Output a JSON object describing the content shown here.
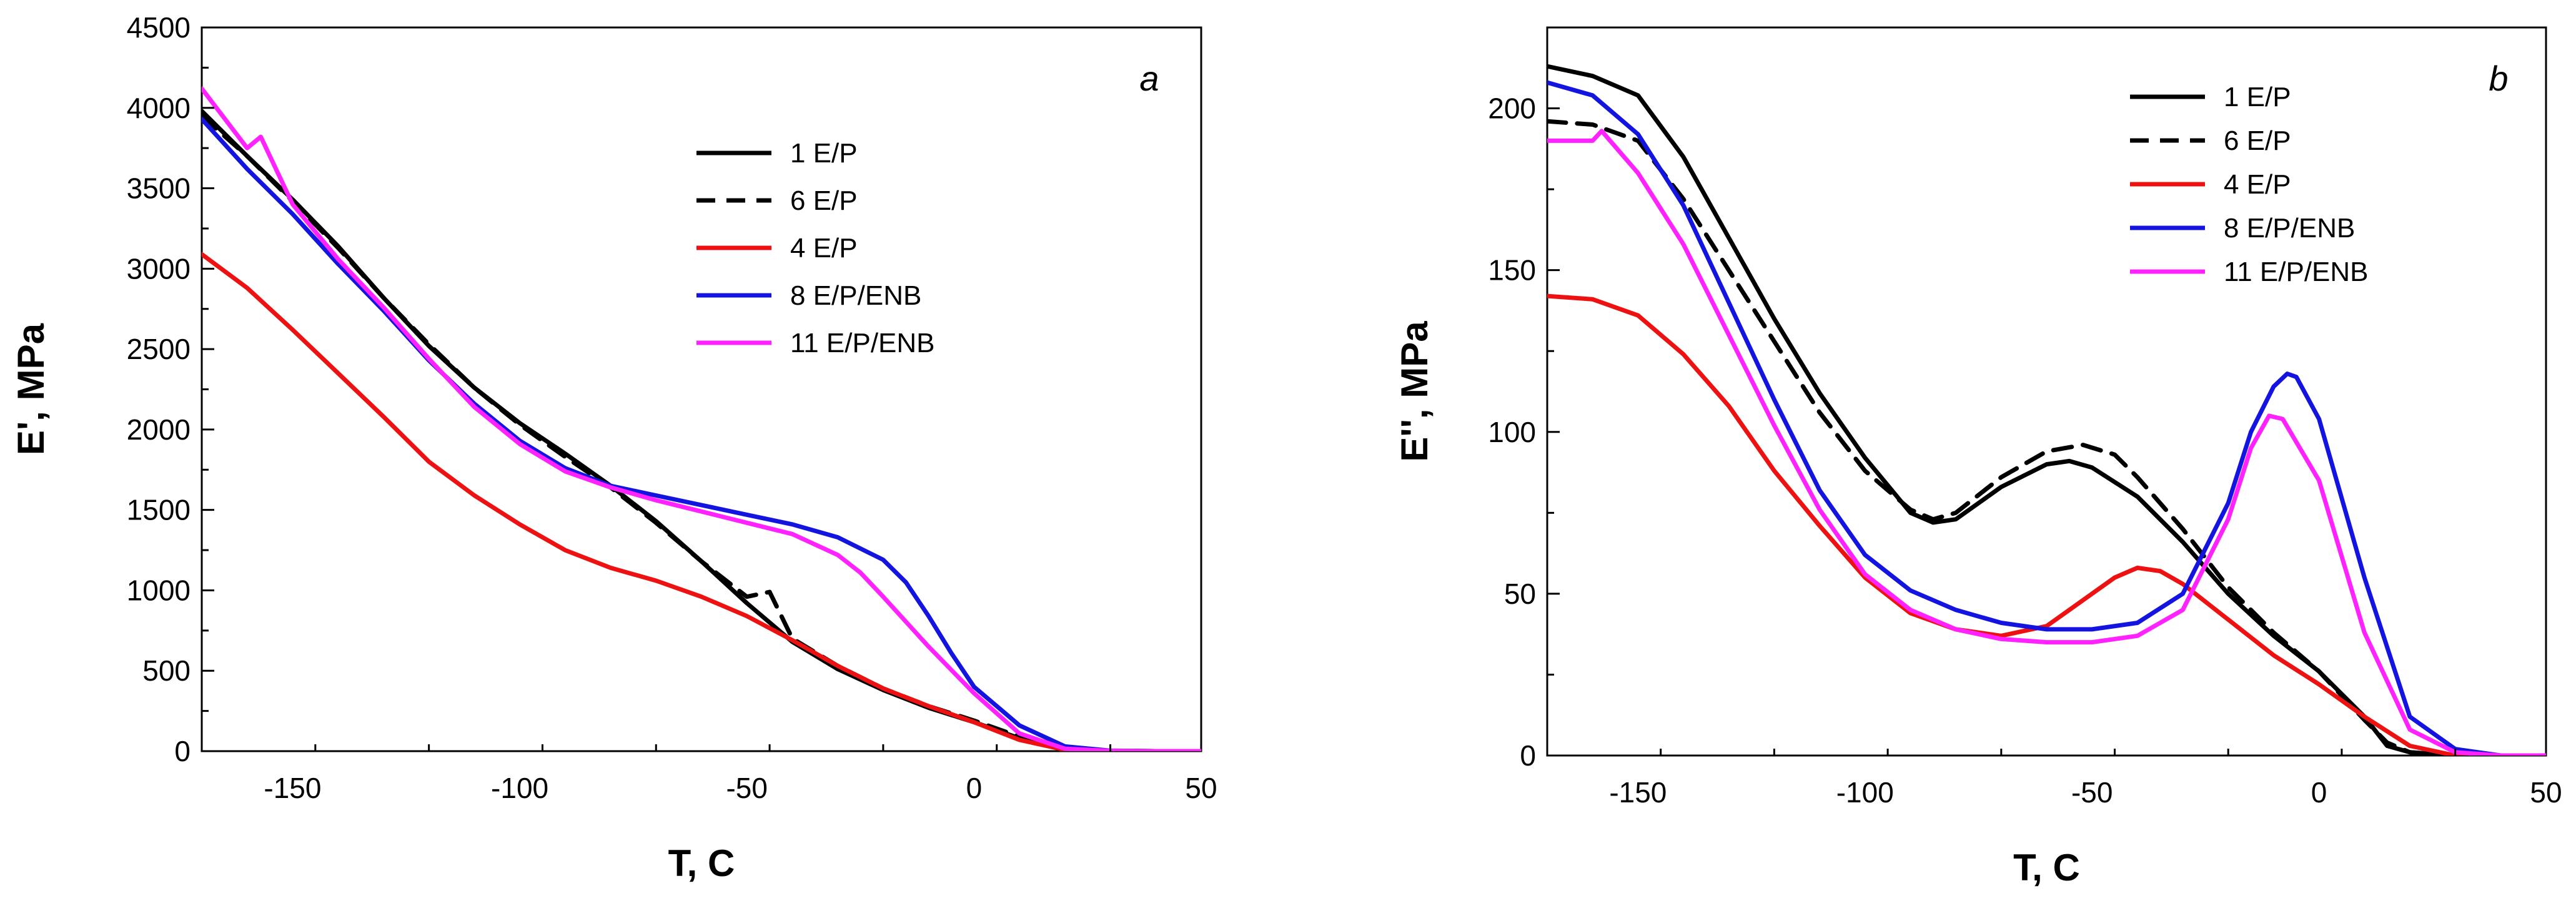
{
  "chart_data": [
    {
      "type": "line",
      "panel_label": "a",
      "xlabel": "T, C",
      "ylabel": "E', MPa",
      "xlim": [
        -170,
        50
      ],
      "ylim": [
        0,
        4500
      ],
      "xticks": [
        -150,
        -100,
        -50,
        0,
        50
      ],
      "yticks": [
        0,
        500,
        1000,
        1500,
        2000,
        2500,
        3000,
        3500,
        4000,
        4500
      ],
      "legend_position": "top-right",
      "series": [
        {
          "name": "1 E/P",
          "color": "#000000",
          "dash": "solid",
          "x": [
            -170,
            -160,
            -150,
            -140,
            -130,
            -120,
            -110,
            -100,
            -90,
            -80,
            -70,
            -60,
            -50,
            -40,
            -30,
            -20,
            -10,
            0,
            10,
            20,
            30,
            40,
            50
          ],
          "y": [
            3980,
            3700,
            3430,
            3140,
            2820,
            2520,
            2260,
            2040,
            1850,
            1650,
            1430,
            1180,
            920,
            680,
            510,
            380,
            270,
            180,
            80,
            10,
            2,
            0,
            0
          ]
        },
        {
          "name": "6 E/P",
          "color": "#000000",
          "dash": "dashed",
          "x": [
            -170,
            -160,
            -150,
            -140,
            -130,
            -120,
            -110,
            -100,
            -90,
            -80,
            -70,
            -60,
            -50,
            -45,
            -40,
            -30,
            -20,
            -10,
            0,
            10,
            20,
            30,
            40,
            50
          ],
          "y": [
            3950,
            3700,
            3420,
            3130,
            2820,
            2530,
            2260,
            2030,
            1830,
            1640,
            1420,
            1180,
            960,
            990,
            700,
            530,
            390,
            280,
            190,
            90,
            15,
            2,
            0,
            0
          ]
        },
        {
          "name": "4 E/P",
          "color": "#ee1111",
          "dash": "solid",
          "x": [
            -170,
            -160,
            -150,
            -140,
            -130,
            -120,
            -110,
            -100,
            -90,
            -80,
            -70,
            -60,
            -50,
            -40,
            -30,
            -20,
            -10,
            0,
            10,
            20,
            30,
            40,
            50
          ],
          "y": [
            3090,
            2880,
            2620,
            2350,
            2080,
            1800,
            1590,
            1410,
            1250,
            1140,
            1060,
            960,
            840,
            690,
            530,
            390,
            280,
            180,
            70,
            8,
            0,
            0,
            0
          ]
        },
        {
          "name": "8 E/P/ENB",
          "color": "#1414e0",
          "dash": "solid",
          "x": [
            -170,
            -160,
            -150,
            -140,
            -130,
            -120,
            -110,
            -100,
            -90,
            -80,
            -70,
            -60,
            -50,
            -40,
            -30,
            -20,
            -15,
            -10,
            -5,
            0,
            10,
            20,
            30,
            40,
            50
          ],
          "y": [
            3930,
            3620,
            3340,
            3030,
            2740,
            2430,
            2160,
            1930,
            1760,
            1650,
            1590,
            1530,
            1470,
            1410,
            1330,
            1190,
            1050,
            840,
            610,
            400,
            160,
            30,
            3,
            0,
            0
          ]
        },
        {
          "name": "11 E/P/ENB",
          "color": "#ff22ff",
          "dash": "solid",
          "x": [
            -170,
            -160,
            -157,
            -150,
            -140,
            -130,
            -120,
            -110,
            -100,
            -90,
            -80,
            -70,
            -60,
            -50,
            -40,
            -30,
            -25,
            -20,
            -10,
            0,
            10,
            20,
            30,
            40,
            50
          ],
          "y": [
            4120,
            3750,
            3820,
            3400,
            3060,
            2760,
            2440,
            2140,
            1910,
            1740,
            1640,
            1560,
            1490,
            1420,
            1350,
            1220,
            1110,
            960,
            650,
            360,
            110,
            15,
            2,
            0,
            0
          ]
        }
      ]
    },
    {
      "type": "line",
      "panel_label": "b",
      "xlabel": "T, C",
      "ylabel": "E'', MPa",
      "xlim": [
        -170,
        50
      ],
      "ylim": [
        0,
        225
      ],
      "xticks": [
        -150,
        -100,
        -50,
        0,
        50
      ],
      "yticks": [
        0,
        50,
        100,
        150,
        200
      ],
      "legend_position": "top-right",
      "series": [
        {
          "name": "1 E/P",
          "color": "#000000",
          "dash": "solid",
          "x": [
            -170,
            -160,
            -150,
            -140,
            -130,
            -120,
            -110,
            -100,
            -90,
            -85,
            -80,
            -70,
            -60,
            -55,
            -50,
            -40,
            -30,
            -20,
            -10,
            0,
            10,
            15,
            20,
            30,
            40,
            50
          ],
          "y": [
            213,
            210,
            204,
            185,
            160,
            135,
            112,
            92,
            75,
            72,
            73,
            83,
            90,
            91,
            89,
            80,
            66,
            50,
            37,
            26,
            12,
            3,
            1,
            0,
            0,
            0
          ]
        },
        {
          "name": "6 E/P",
          "color": "#000000",
          "dash": "dashed",
          "x": [
            -170,
            -160,
            -150,
            -140,
            -130,
            -120,
            -110,
            -100,
            -90,
            -85,
            -80,
            -70,
            -60,
            -52,
            -45,
            -40,
            -30,
            -20,
            -10,
            0,
            10,
            15,
            20,
            30,
            40,
            50
          ],
          "y": [
            196,
            195,
            190,
            172,
            150,
            128,
            106,
            88,
            76,
            73,
            75,
            86,
            94,
            96,
            93,
            86,
            70,
            52,
            38,
            26,
            11,
            4,
            1,
            0,
            0,
            0
          ]
        },
        {
          "name": "4 E/P",
          "color": "#ee1111",
          "dash": "solid",
          "x": [
            -170,
            -160,
            -150,
            -140,
            -130,
            -120,
            -110,
            -100,
            -90,
            -80,
            -70,
            -60,
            -50,
            -45,
            -40,
            -35,
            -30,
            -20,
            -10,
            0,
            10,
            20,
            30,
            40,
            50
          ],
          "y": [
            142,
            141,
            136,
            124,
            108,
            88,
            71,
            55,
            44,
            39,
            37,
            40,
            50,
            55,
            58,
            57,
            53,
            42,
            31,
            22,
            12,
            3,
            0,
            0,
            0
          ]
        },
        {
          "name": "8 E/P/ENB",
          "color": "#1414e0",
          "dash": "solid",
          "x": [
            -170,
            -160,
            -150,
            -140,
            -130,
            -120,
            -110,
            -100,
            -90,
            -80,
            -70,
            -60,
            -50,
            -40,
            -30,
            -20,
            -15,
            -10,
            -7,
            -5,
            0,
            10,
            20,
            30,
            40,
            50
          ],
          "y": [
            208,
            204,
            192,
            170,
            140,
            110,
            82,
            62,
            51,
            45,
            41,
            39,
            39,
            41,
            50,
            78,
            100,
            114,
            118,
            117,
            104,
            55,
            12,
            2,
            0,
            0
          ]
        },
        {
          "name": "11 E/P/ENB",
          "color": "#ff22ff",
          "dash": "solid",
          "x": [
            -170,
            -160,
            -158,
            -150,
            -140,
            -130,
            -120,
            -110,
            -100,
            -90,
            -80,
            -70,
            -60,
            -50,
            -40,
            -30,
            -20,
            -15,
            -11,
            -8,
            0,
            10,
            20,
            30,
            40,
            50
          ],
          "y": [
            190,
            190,
            193,
            180,
            158,
            130,
            102,
            76,
            56,
            45,
            39,
            36,
            35,
            35,
            37,
            45,
            73,
            95,
            105,
            104,
            85,
            38,
            8,
            1,
            0,
            0
          ]
        }
      ]
    }
  ]
}
